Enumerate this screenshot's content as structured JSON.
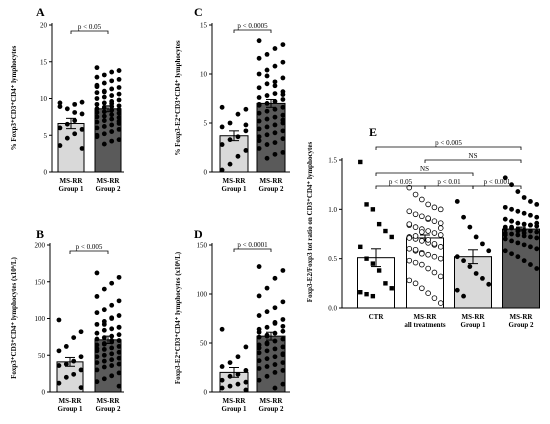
{
  "panels": [
    {
      "letter": "A",
      "ylabel": "% Foxp3⁺CD3⁺CD4⁺ lymphocytes",
      "ylim": [
        0,
        20
      ],
      "yticks": [
        "0",
        "5",
        "10",
        "15",
        "20"
      ],
      "categories": [
        [
          "MS-RR",
          "Group 1"
        ],
        [
          "MS-RR",
          "Group 2"
        ]
      ],
      "bars": [
        {
          "mean": 6.6,
          "sem": 0.7
        },
        {
          "mean": 8.6,
          "sem": 0.4
        }
      ],
      "points": [
        [
          9.4,
          9.5,
          9.2,
          8.6,
          8.9,
          7.9,
          7.0,
          6.5,
          6.0,
          5.8,
          5.2,
          4.6,
          3.6,
          3.2,
          8.1
        ],
        [
          14.2,
          13.8,
          13.6,
          13.2,
          12.9,
          12.6,
          12.4,
          12.1,
          11.8,
          11.5,
          11.3,
          11.0,
          10.8,
          10.6,
          10.4,
          10.2,
          10.0,
          9.8,
          9.6,
          9.4,
          9.2,
          9.0,
          8.9,
          8.8,
          8.6,
          8.5,
          8.4,
          8.2,
          8.1,
          8.0,
          7.8,
          7.6,
          7.5,
          7.4,
          7.2,
          7.0,
          6.8,
          6.6,
          6.4,
          6.2,
          6.0,
          5.8,
          5.5,
          5.2,
          4.8,
          4.4,
          4.2,
          3.8,
          5.0,
          6.9,
          9.3,
          10.9,
          11.6
        ]
      ],
      "markers": [
        "circle",
        "circle"
      ],
      "brackets": [
        {
          "from": 0,
          "to": 1,
          "label": "p < 0.05"
        }
      ]
    },
    {
      "letter": "B",
      "ylabel": "Foxp3⁺CD3⁺CD4⁺ lymphocytes (x10⁶/L)",
      "ylim": [
        0,
        200
      ],
      "yticks": [
        "0",
        "50",
        "100",
        "150",
        "200"
      ],
      "categories": [
        [
          "MS-RR",
          "Group 1"
        ],
        [
          "MS-RR",
          "Group 2"
        ]
      ],
      "bars": [
        {
          "mean": 41,
          "sem": 6
        },
        {
          "mean": 71,
          "sem": 5
        }
      ],
      "points": [
        [
          98,
          82,
          74,
          62,
          56,
          48,
          42,
          38,
          36,
          30,
          24,
          20,
          12,
          6
        ],
        [
          162,
          156,
          148,
          140,
          130,
          124,
          118,
          112,
          108,
          104,
          100,
          96,
          92,
          88,
          86,
          84,
          80,
          78,
          76,
          74,
          72,
          70,
          68,
          66,
          64,
          62,
          60,
          58,
          56,
          54,
          52,
          50,
          48,
          46,
          44,
          42,
          40,
          38,
          36,
          34,
          30,
          26,
          22,
          18,
          14,
          8,
          70,
          65,
          59,
          88,
          101,
          92
        ]
      ],
      "markers": [
        "circle",
        "circle"
      ],
      "brackets": [
        {
          "from": 0,
          "to": 1,
          "label": "p < 0.005"
        }
      ]
    },
    {
      "letter": "C",
      "ylabel": "% Foxp3-E2⁺CD3⁺CD4⁺ lymphocytes",
      "ylim": [
        0,
        15
      ],
      "yticks": [
        "0",
        "5",
        "10",
        "15"
      ],
      "categories": [
        [
          "MS-RR",
          "Group 1"
        ],
        [
          "MS-RR",
          "Group 2"
        ]
      ],
      "bars": [
        {
          "mean": 3.7,
          "sem": 0.5
        },
        {
          "mean": 7.0,
          "sem": 0.4
        }
      ],
      "points": [
        [
          6.6,
          6.4,
          5.9,
          5.0,
          4.6,
          4.2,
          3.6,
          3.3,
          2.8,
          2.2,
          1.6,
          0.8,
          0.2,
          4.8
        ],
        [
          13.4,
          13.0,
          12.6,
          12.0,
          11.6,
          11.2,
          10.8,
          10.4,
          10.0,
          9.6,
          9.2,
          9.0,
          8.6,
          8.2,
          8.0,
          7.8,
          7.6,
          7.4,
          7.2,
          7.0,
          6.8,
          6.6,
          6.4,
          6.2,
          6.0,
          5.8,
          5.6,
          5.4,
          5.2,
          5.0,
          4.8,
          4.6,
          4.4,
          4.2,
          4.0,
          3.8,
          3.6,
          3.4,
          3.0,
          2.8,
          2.4,
          2.0,
          1.8,
          1.4,
          6.9,
          7.9,
          8.8,
          9.8,
          3.2,
          5.3
        ]
      ],
      "markers": [
        "circle",
        "circle"
      ],
      "brackets": [
        {
          "from": 0,
          "to": 1,
          "label": "p < 0.0005"
        }
      ]
    },
    {
      "letter": "D",
      "ylabel": "Foxp3-E2⁺CD3⁺CD4⁺ lymphocytes (x10⁶/L)",
      "ylim": [
        0,
        150
      ],
      "yticks": [
        "0",
        "50",
        "100",
        "150"
      ],
      "categories": [
        [
          "MS-RR",
          "Group 1"
        ],
        [
          "MS-RR",
          "Group 2"
        ]
      ],
      "bars": [
        {
          "mean": 20,
          "sem": 5
        },
        {
          "mean": 57,
          "sem": 4
        }
      ],
      "points": [
        [
          64,
          46,
          36,
          30,
          26,
          22,
          18,
          16,
          12,
          10,
          8,
          6,
          4,
          2
        ],
        [
          128,
          124,
          116,
          106,
          98,
          92,
          86,
          82,
          78,
          74,
          70,
          66,
          64,
          62,
          60,
          58,
          56,
          54,
          52,
          50,
          48,
          46,
          44,
          42,
          40,
          38,
          36,
          34,
          32,
          30,
          28,
          26,
          24,
          22,
          20,
          16,
          12,
          8,
          4,
          57,
          61,
          67,
          71,
          49,
          45,
          39
        ]
      ],
      "markers": [
        "circle",
        "circle"
      ],
      "brackets": [
        {
          "from": 0,
          "to": 1,
          "label": "p < 0.0001"
        }
      ]
    },
    {
      "letter": "E",
      "ylabel": "Foxp3-E2/Foxp3 tot ratio on CD3⁺CD4⁺ lymphocytes",
      "ylim": [
        0,
        1.5
      ],
      "yticks": [
        "0.0",
        "0.5",
        "1.0",
        "1.5"
      ],
      "categories": [
        [
          "CTR"
        ],
        [
          "MS-RR",
          "all treatments"
        ],
        [
          "MS-RR",
          "Group 1"
        ],
        [
          "MS-RR",
          "Group 2"
        ]
      ],
      "bars": [
        {
          "mean": 0.51,
          "sem": 0.09
        },
        {
          "mean": 0.71,
          "sem": 0.03
        },
        {
          "mean": 0.52,
          "sem": 0.07
        },
        {
          "mean": 0.8,
          "sem": 0.02
        }
      ],
      "points": [
        [
          1.48,
          1.05,
          1.0,
          0.85,
          0.78,
          0.72,
          0.62,
          0.5,
          0.45,
          0.38,
          0.25,
          0.2,
          0.16,
          0.14,
          0.12
        ],
        [
          1.22,
          1.15,
          1.1,
          1.05,
          1.02,
          1.0,
          0.98,
          0.95,
          0.93,
          0.9,
          0.88,
          0.86,
          0.84,
          0.82,
          0.8,
          0.78,
          0.76,
          0.74,
          0.72,
          0.7,
          0.68,
          0.66,
          0.64,
          0.62,
          0.6,
          0.58,
          0.56,
          0.54,
          0.52,
          0.5,
          0.48,
          0.46,
          0.44,
          0.4,
          0.36,
          0.32,
          0.28,
          0.25,
          0.2,
          0.15,
          0.1,
          0.05,
          0.71,
          0.73,
          0.77,
          0.69,
          0.65,
          0.81,
          0.85,
          0.59,
          0.55,
          0.91
        ],
        [
          1.08,
          0.92,
          0.82,
          0.72,
          0.65,
          0.58,
          0.52,
          0.48,
          0.42,
          0.35,
          0.3,
          0.24,
          0.18,
          0.12
        ],
        [
          1.32,
          1.25,
          1.18,
          1.12,
          1.08,
          1.05,
          1.02,
          1.0,
          0.98,
          0.96,
          0.94,
          0.92,
          0.9,
          0.88,
          0.86,
          0.85,
          0.84,
          0.83,
          0.82,
          0.81,
          0.8,
          0.79,
          0.78,
          0.77,
          0.76,
          0.75,
          0.74,
          0.73,
          0.72,
          0.71,
          0.7,
          0.68,
          0.66,
          0.64,
          0.62,
          0.6,
          0.58,
          0.55,
          0.52,
          0.48,
          0.44,
          0.4,
          0.8,
          0.82,
          0.78,
          0.76,
          0.84,
          0.86,
          0.74,
          0.88
        ]
      ],
      "markers": [
        "square",
        "circle-open",
        "circle",
        "circle"
      ],
      "brackets": [
        {
          "from": 0,
          "to": 3,
          "label": "p < 0.005",
          "level": 3
        },
        {
          "from": 1,
          "to": 3,
          "label": "NS",
          "level": 2
        },
        {
          "from": 0,
          "to": 2,
          "label": "NS",
          "level": 1
        },
        {
          "from": 0,
          "to": 1,
          "label": "p < 0.05",
          "level": 0
        },
        {
          "from": 1,
          "to": 2,
          "label": "p < 0.01",
          "level": 0
        },
        {
          "from": 2,
          "to": 3,
          "label": "p < 0.001",
          "level": 0
        }
      ]
    }
  ],
  "chart_data": [
    {
      "type": "bar",
      "panel": "A",
      "categories": [
        "MS-RR Group 1",
        "MS-RR Group 2"
      ],
      "values": [
        6.6,
        8.6
      ],
      "ylabel": "% Foxp3⁺CD3⁺CD4⁺ lymphocytes",
      "ylim": [
        0,
        20
      ],
      "annotations": [
        "p < 0.05"
      ]
    },
    {
      "type": "bar",
      "panel": "B",
      "categories": [
        "MS-RR Group 1",
        "MS-RR Group 2"
      ],
      "values": [
        41,
        71
      ],
      "ylabel": "Foxp3⁺CD3⁺CD4⁺ lymphocytes (x10⁶/L)",
      "ylim": [
        0,
        200
      ],
      "annotations": [
        "p < 0.005"
      ]
    },
    {
      "type": "bar",
      "panel": "C",
      "categories": [
        "MS-RR Group 1",
        "MS-RR Group 2"
      ],
      "values": [
        3.7,
        7.0
      ],
      "ylabel": "% Foxp3-E2⁺CD3⁺CD4⁺ lymphocytes",
      "ylim": [
        0,
        15
      ],
      "annotations": [
        "p < 0.0005"
      ]
    },
    {
      "type": "bar",
      "panel": "D",
      "categories": [
        "MS-RR Group 1",
        "MS-RR Group 2"
      ],
      "values": [
        20,
        57
      ],
      "ylabel": "Foxp3-E2⁺CD3⁺CD4⁺ lymphocytes (x10⁶/L)",
      "ylim": [
        0,
        150
      ],
      "annotations": [
        "p < 0.0001"
      ]
    },
    {
      "type": "bar",
      "panel": "E",
      "categories": [
        "CTR",
        "MS-RR all treatments",
        "MS-RR Group 1",
        "MS-RR Group 2"
      ],
      "values": [
        0.51,
        0.71,
        0.52,
        0.8
      ],
      "ylabel": "Foxp3-E2/Foxp3 tot ratio on CD3⁺CD4⁺ lymphocytes",
      "ylim": [
        0,
        1.5
      ],
      "annotations": [
        "p < 0.005",
        "NS",
        "NS",
        "p < 0.05",
        "p < 0.01",
        "p < 0.001"
      ]
    }
  ]
}
